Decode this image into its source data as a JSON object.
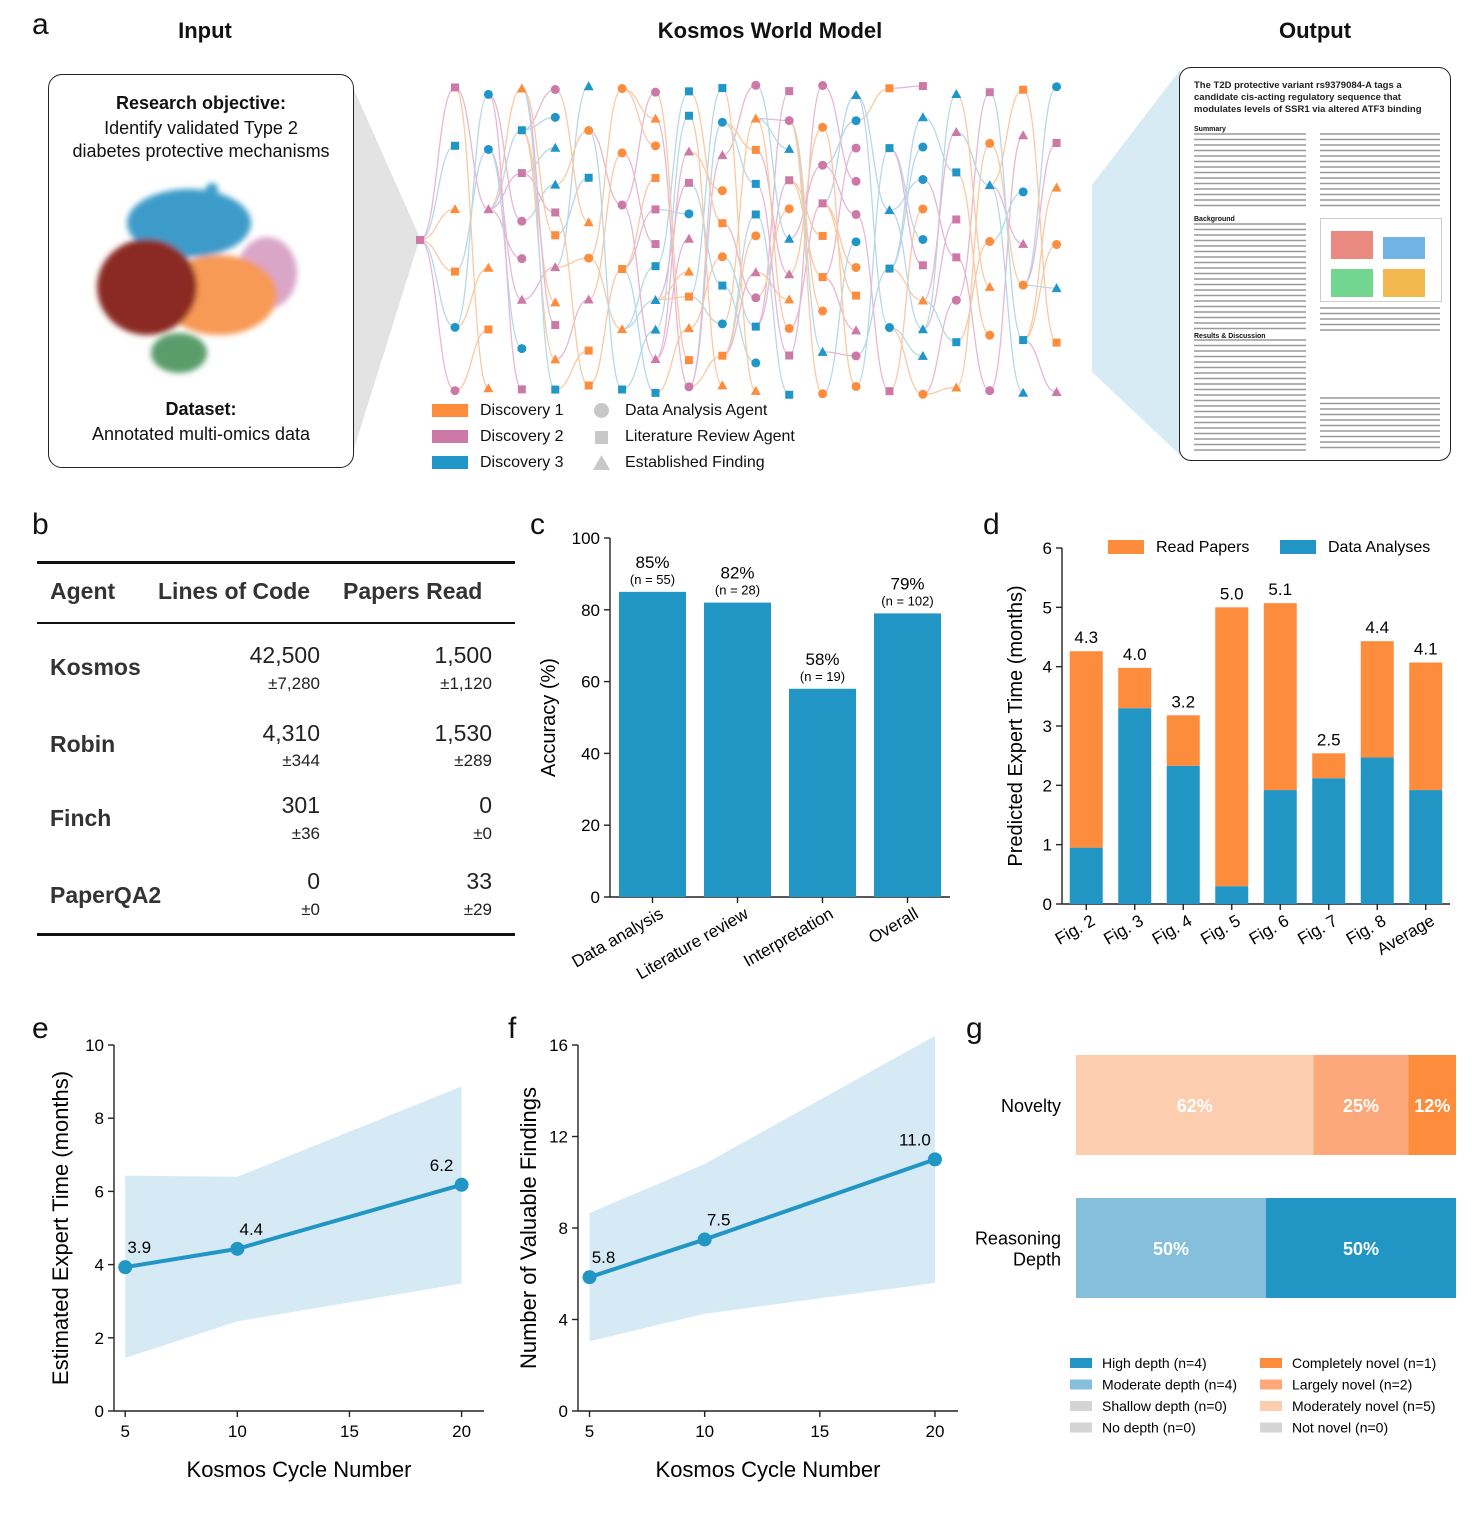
{
  "panels": {
    "a": "a",
    "b": "b",
    "c": "c",
    "d": "d",
    "e": "e",
    "f": "f",
    "g": "g"
  },
  "panel_a": {
    "headers": {
      "input": "Input",
      "world_model": "Kosmos World Model",
      "output": "Output"
    },
    "input_box": {
      "objective_title": "Research objective:",
      "objective_line1": "Identify validated Type 2",
      "objective_line2": "diabetes protective mechanisms",
      "dataset_title": "Dataset:",
      "dataset_text": "Annotated multi-omics data"
    },
    "legend": [
      {
        "label": "Discovery 1",
        "color": "#fd8c3c"
      },
      {
        "label": "Discovery 2",
        "color": "#cc79a7"
      },
      {
        "label": "Discovery 3",
        "color": "#2096c8"
      },
      {
        "label": "Data Analysis Agent",
        "shape": "circle"
      },
      {
        "label": "Literature Review Agent",
        "shape": "square"
      },
      {
        "label": "Established Finding",
        "shape": "triangle"
      }
    ],
    "output_paper": {
      "title": "The T2D protective variant rs9379084-A tags a candidate cis-acting regulatory sequence that modulates levels of SSR1 via altered ATF3 binding",
      "sections": [
        "Summary",
        "Background",
        "Results & Discussion"
      ]
    }
  },
  "panel_b": {
    "headers": {
      "agent": "Agent",
      "loc": "Lines of Code",
      "papers": "Papers Read"
    },
    "rows": [
      {
        "agent": "Kosmos",
        "loc": "42,500",
        "loc_sd": "±7,280",
        "papers": "1,500",
        "papers_sd": "±1,120"
      },
      {
        "agent": "Robin",
        "loc": "4,310",
        "loc_sd": "±344",
        "papers": "1,530",
        "papers_sd": "±289"
      },
      {
        "agent": "Finch",
        "loc": "301",
        "loc_sd": "±36",
        "papers": "0",
        "papers_sd": "±0"
      },
      {
        "agent": "PaperQA2",
        "loc": "0",
        "loc_sd": "±0",
        "papers": "33",
        "papers_sd": "±29"
      }
    ]
  },
  "chart_data": [
    {
      "id": "c",
      "type": "bar",
      "categories": [
        "Data analysis",
        "Literature review",
        "Interpretation",
        "Overall"
      ],
      "values": [
        85,
        82,
        58,
        79
      ],
      "labels": [
        "85%",
        "82%",
        "58%",
        "79%"
      ],
      "n_labels": [
        "(n = 55)",
        "(n = 28)",
        "(n = 19)",
        "(n = 102)"
      ],
      "ylabel": "Accuracy (%)",
      "ylim": [
        0,
        100
      ],
      "yticks": [
        0,
        20,
        40,
        60,
        80,
        100
      ],
      "color": "#2196c4"
    },
    {
      "id": "d",
      "type": "bar",
      "stacked": true,
      "categories": [
        "Fig. 2",
        "Fig. 3",
        "Fig. 4",
        "Fig. 5",
        "Fig. 6",
        "Fig. 7",
        "Fig. 8",
        "Average"
      ],
      "series": [
        {
          "name": "Data Analyses",
          "color": "#2196c4",
          "values": [
            0.95,
            3.3,
            2.33,
            0.3,
            1.92,
            2.12,
            2.47,
            1.92
          ]
        },
        {
          "name": "Read Papers",
          "color": "#fd8c3c",
          "values": [
            3.31,
            0.68,
            0.85,
            4.7,
            3.15,
            0.42,
            1.96,
            2.15
          ]
        }
      ],
      "totals": [
        "4.3",
        "4.0",
        "3.2",
        "5.0",
        "5.1",
        "2.5",
        "4.4",
        "4.1"
      ],
      "ylabel": "Predicted Expert Time (months)",
      "ylim": [
        0,
        6
      ],
      "yticks": [
        0,
        1,
        2,
        3,
        4,
        5,
        6
      ],
      "legend_placement": "top"
    },
    {
      "id": "e",
      "type": "line",
      "x": [
        5,
        10,
        20
      ],
      "y": [
        3.93,
        4.43,
        6.18
      ],
      "point_labels": [
        "3.9",
        "4.4",
        "6.2"
      ],
      "band_lower": [
        1.45,
        2.45,
        3.48
      ],
      "band_upper": [
        6.43,
        6.4,
        8.87
      ],
      "xlabel": "Kosmos Cycle Number",
      "ylabel": "Estimated Expert Time (months)",
      "xlim": [
        4.5,
        21
      ],
      "ylim": [
        0,
        10
      ],
      "xticks": [
        5,
        10,
        15,
        20
      ],
      "yticks": [
        0,
        2,
        4,
        6,
        8,
        10
      ],
      "color": "#2196c4",
      "band_color": "#d6eaf5"
    },
    {
      "id": "f",
      "type": "line",
      "x": [
        5,
        10,
        20
      ],
      "y": [
        5.85,
        7.5,
        11.0
      ],
      "point_labels": [
        "5.8",
        "7.5",
        "11.0"
      ],
      "band_lower": [
        3.05,
        4.25,
        5.6
      ],
      "band_upper": [
        8.65,
        10.8,
        16.4
      ],
      "xlabel": "Kosmos Cycle Number",
      "ylabel": "Number of Valuable Findings",
      "xlim": [
        4.5,
        21
      ],
      "ylim": [
        0,
        16
      ],
      "xticks": [
        5,
        10,
        15,
        20
      ],
      "yticks": [
        0,
        4,
        8,
        12,
        16
      ],
      "color": "#2196c4",
      "band_color": "#d6eaf5"
    },
    {
      "id": "g",
      "type": "bar",
      "orientation": "horizontal",
      "stacked": true,
      "categories": [
        "Novelty",
        "Reasoning Depth"
      ],
      "rows": [
        {
          "label_lines": [
            "Novelty"
          ],
          "segments": [
            {
              "value": 62.5,
              "label": "62%",
              "color": "#fdcdb0"
            },
            {
              "value": 25,
              "label": "25%",
              "color": "#fda87a"
            },
            {
              "value": 12.5,
              "label": "12%",
              "color": "#fd8c3c"
            }
          ]
        },
        {
          "label_lines": [
            "Reasoning",
            "Depth"
          ],
          "segments": [
            {
              "value": 50,
              "label": "50%",
              "color": "#85bfdc"
            },
            {
              "value": 50,
              "label": "50%",
              "color": "#2196c4"
            }
          ]
        }
      ],
      "legend": [
        {
          "label": "High depth (n=4)",
          "color": "#2196c4"
        },
        {
          "label": "Completely novel (n=1)",
          "color": "#fd8c3c"
        },
        {
          "label": "Moderate depth (n=4)",
          "color": "#85bfdc"
        },
        {
          "label": "Largely novel (n=2)",
          "color": "#fda87a"
        },
        {
          "label": "Shallow depth (n=0)",
          "color": "#d4d4d4"
        },
        {
          "label": "Moderately novel (n=5)",
          "color": "#fdcdb0"
        },
        {
          "label": "No depth (n=0)",
          "color": "#d4d4d4"
        },
        {
          "label": "Not novel (n=0)",
          "color": "#d4d4d4"
        }
      ]
    }
  ]
}
